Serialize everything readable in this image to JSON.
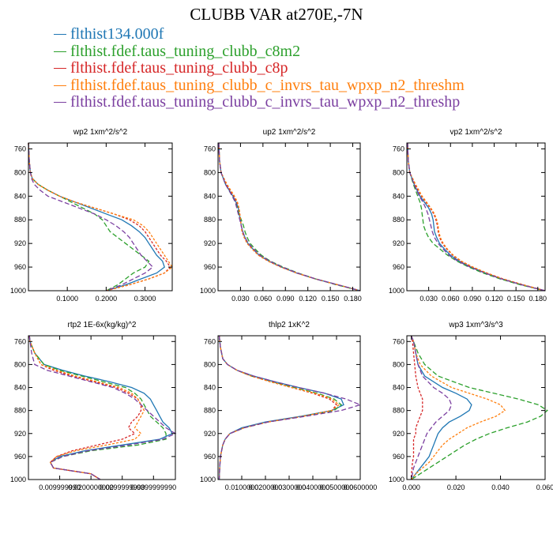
{
  "title": "CLUBB VAR at270E,-7N",
  "legend": [
    {
      "name": "flthist134.000f",
      "color": "#1f77b4"
    },
    {
      "name": "flthist.fdef.taus_tuning_clubb_c8m2",
      "color": "#2ca02c"
    },
    {
      "name": "flthist.fdef.taus_tuning_clubb_c8p",
      "color": "#d62728"
    },
    {
      "name": "flthist.fdef.taus_tuning_clubb_c_invrs_tau_wpxp_n2_threshm",
      "color": "#ff7f0e"
    },
    {
      "name": "flthist.fdef.taus_tuning_clubb_c_invrs_tau_wpxp_n2_threshp",
      "color": "#7b3fa0"
    }
  ],
  "chart_data": [
    {
      "type": "line",
      "title": "wp2 1xm^2/s^2",
      "xlim": [
        0,
        0.37
      ],
      "ylim": [
        1000,
        750
      ],
      "xticks": [
        "0.1000",
        "0.2000",
        "0.3000"
      ],
      "xtick_values": [
        0.1,
        0.2,
        0.3
      ],
      "yticks": [
        "760",
        "800",
        "840",
        "880",
        "920",
        "960",
        "1000"
      ],
      "y": [
        750,
        780,
        800,
        810,
        820,
        830,
        840,
        850,
        860,
        870,
        880,
        890,
        900,
        910,
        920,
        930,
        940,
        950,
        960,
        970,
        980,
        990,
        1000
      ],
      "series": [
        {
          "values": [
            0,
            0.002,
            0.005,
            0.01,
            0.025,
            0.05,
            0.08,
            0.12,
            0.16,
            0.2,
            0.24,
            0.265,
            0.285,
            0.3,
            0.31,
            0.32,
            0.33,
            0.345,
            0.35,
            0.33,
            0.29,
            0.25,
            0.2
          ]
        },
        {
          "values": [
            0,
            0.002,
            0.005,
            0.01,
            0.025,
            0.05,
            0.08,
            0.11,
            0.14,
            0.17,
            0.19,
            0.2,
            0.21,
            0.23,
            0.25,
            0.27,
            0.29,
            0.31,
            0.3,
            0.27,
            0.25,
            0.23,
            0.2
          ]
        },
        {
          "values": [
            0,
            0.002,
            0.005,
            0.01,
            0.025,
            0.05,
            0.08,
            0.12,
            0.17,
            0.22,
            0.26,
            0.285,
            0.3,
            0.31,
            0.32,
            0.33,
            0.34,
            0.355,
            0.365,
            0.35,
            0.31,
            0.26,
            0.2
          ]
        },
        {
          "values": [
            0,
            0.002,
            0.005,
            0.01,
            0.025,
            0.05,
            0.08,
            0.12,
            0.17,
            0.22,
            0.27,
            0.295,
            0.31,
            0.32,
            0.33,
            0.34,
            0.35,
            0.36,
            0.37,
            0.35,
            0.31,
            0.26,
            0.2
          ]
        },
        {
          "values": [
            0,
            0.002,
            0.005,
            0.008,
            0.015,
            0.03,
            0.05,
            0.09,
            0.13,
            0.17,
            0.2,
            0.225,
            0.245,
            0.26,
            0.27,
            0.28,
            0.29,
            0.305,
            0.32,
            0.3,
            0.27,
            0.24,
            0.2
          ]
        }
      ]
    },
    {
      "type": "line",
      "title": "up2 1xm^2/s^2",
      "xlim": [
        0,
        0.19
      ],
      "ylim": [
        1000,
        750
      ],
      "xticks": [
        "0.030",
        "0.060",
        "0.090",
        "0.120",
        "0.150",
        "0.180"
      ],
      "xtick_values": [
        0.03,
        0.06,
        0.09,
        0.12,
        0.15,
        0.18
      ],
      "yticks": [
        "760",
        "800",
        "840",
        "880",
        "920",
        "960",
        "1000"
      ],
      "y": [
        750,
        780,
        800,
        820,
        840,
        850,
        860,
        870,
        880,
        890,
        900,
        910,
        920,
        930,
        940,
        950,
        960,
        970,
        980,
        990,
        1000
      ],
      "series": [
        {
          "values": [
            0.001,
            0.002,
            0.004,
            0.01,
            0.02,
            0.024,
            0.027,
            0.028,
            0.03,
            0.031,
            0.033,
            0.036,
            0.04,
            0.047,
            0.055,
            0.068,
            0.085,
            0.105,
            0.13,
            0.16,
            0.19
          ]
        },
        {
          "values": [
            0.001,
            0.002,
            0.004,
            0.01,
            0.019,
            0.023,
            0.026,
            0.028,
            0.031,
            0.034,
            0.036,
            0.039,
            0.043,
            0.05,
            0.058,
            0.07,
            0.087,
            0.107,
            0.13,
            0.158,
            0.19
          ]
        },
        {
          "values": [
            0.001,
            0.002,
            0.004,
            0.011,
            0.021,
            0.025,
            0.028,
            0.029,
            0.03,
            0.031,
            0.032,
            0.035,
            0.039,
            0.046,
            0.054,
            0.067,
            0.084,
            0.105,
            0.13,
            0.16,
            0.19
          ]
        },
        {
          "values": [
            0.001,
            0.002,
            0.004,
            0.012,
            0.022,
            0.026,
            0.028,
            0.029,
            0.03,
            0.031,
            0.032,
            0.035,
            0.039,
            0.046,
            0.054,
            0.067,
            0.084,
            0.105,
            0.13,
            0.16,
            0.19
          ]
        },
        {
          "values": [
            0.001,
            0.002,
            0.004,
            0.01,
            0.019,
            0.023,
            0.025,
            0.027,
            0.029,
            0.031,
            0.033,
            0.036,
            0.041,
            0.048,
            0.056,
            0.069,
            0.086,
            0.106,
            0.13,
            0.16,
            0.19
          ]
        }
      ]
    },
    {
      "type": "line",
      "title": "vp2 1xm^2/s^2",
      "xlim": [
        0,
        0.19
      ],
      "ylim": [
        1000,
        750
      ],
      "xticks": [
        "0.030",
        "0.060",
        "0.090",
        "0.120",
        "0.150",
        "0.180"
      ],
      "xtick_values": [
        0.03,
        0.06,
        0.09,
        0.12,
        0.15,
        0.18
      ],
      "yticks": [
        "760",
        "800",
        "840",
        "880",
        "920",
        "960",
        "1000"
      ],
      "y": [
        750,
        780,
        800,
        820,
        840,
        850,
        860,
        870,
        880,
        890,
        900,
        910,
        920,
        930,
        940,
        950,
        960,
        970,
        980,
        990,
        1000
      ],
      "series": [
        {
          "values": [
            0.001,
            0.002,
            0.004,
            0.01,
            0.018,
            0.024,
            0.03,
            0.034,
            0.036,
            0.037,
            0.038,
            0.041,
            0.045,
            0.052,
            0.06,
            0.072,
            0.088,
            0.108,
            0.13,
            0.158,
            0.19
          ]
        },
        {
          "values": [
            0.001,
            0.002,
            0.004,
            0.009,
            0.015,
            0.018,
            0.02,
            0.021,
            0.022,
            0.023,
            0.026,
            0.03,
            0.036,
            0.046,
            0.056,
            0.069,
            0.085,
            0.105,
            0.128,
            0.156,
            0.19
          ]
        },
        {
          "values": [
            0.001,
            0.002,
            0.004,
            0.011,
            0.02,
            0.026,
            0.032,
            0.037,
            0.04,
            0.042,
            0.043,
            0.045,
            0.049,
            0.055,
            0.063,
            0.074,
            0.09,
            0.11,
            0.132,
            0.16,
            0.19
          ]
        },
        {
          "values": [
            0.001,
            0.002,
            0.004,
            0.012,
            0.021,
            0.027,
            0.033,
            0.038,
            0.041,
            0.043,
            0.044,
            0.046,
            0.05,
            0.056,
            0.064,
            0.075,
            0.091,
            0.11,
            0.132,
            0.16,
            0.19
          ]
        },
        {
          "values": [
            0.001,
            0.002,
            0.004,
            0.01,
            0.017,
            0.022,
            0.026,
            0.029,
            0.031,
            0.033,
            0.035,
            0.038,
            0.043,
            0.05,
            0.058,
            0.07,
            0.087,
            0.107,
            0.13,
            0.158,
            0.19
          ]
        }
      ]
    },
    {
      "type": "line",
      "title": "rtp2 1E-6x(kg/kg)^2",
      "xlim": [
        0,
        0.047
      ],
      "ylim": [
        1000,
        750
      ],
      "xticks": [
        "0.009999990",
        "0.0200000000",
        "0.0299999990",
        "0.0399999990"
      ],
      "xtick_values": [
        0.01,
        0.02,
        0.03,
        0.04
      ],
      "yticks": [
        "760",
        "800",
        "840",
        "880",
        "920",
        "960",
        "1000"
      ],
      "y": [
        750,
        760,
        780,
        800,
        810,
        820,
        830,
        840,
        850,
        860,
        870,
        880,
        890,
        900,
        910,
        920,
        930,
        940,
        950,
        960,
        970,
        980,
        990,
        1000
      ],
      "series": [
        {
          "values": [
            0.0003,
            0.0005,
            0.002,
            0.005,
            0.011,
            0.018,
            0.026,
            0.033,
            0.037,
            0.039,
            0.04,
            0.041,
            0.042,
            0.043,
            0.045,
            0.046,
            0.042,
            0.03,
            0.018,
            0.01,
            0.007,
            0.008,
            0.02,
            0.023
          ]
        },
        {
          "values": [
            0.0003,
            0.0005,
            0.002,
            0.005,
            0.01,
            0.017,
            0.024,
            0.031,
            0.034,
            0.036,
            0.037,
            0.038,
            0.039,
            0.041,
            0.043,
            0.044,
            0.044,
            0.035,
            0.02,
            0.011,
            0.007,
            0.008,
            0.02,
            0.023
          ]
        },
        {
          "values": [
            0.0003,
            0.0005,
            0.002,
            0.004,
            0.008,
            0.014,
            0.021,
            0.028,
            0.032,
            0.035,
            0.036,
            0.036,
            0.035,
            0.033,
            0.032,
            0.034,
            0.03,
            0.022,
            0.014,
            0.009,
            0.007,
            0.008,
            0.02,
            0.023
          ]
        },
        {
          "values": [
            0.0003,
            0.0005,
            0.002,
            0.004,
            0.009,
            0.015,
            0.022,
            0.029,
            0.033,
            0.035,
            0.036,
            0.037,
            0.036,
            0.035,
            0.034,
            0.036,
            0.034,
            0.025,
            0.015,
            0.009,
            0.007,
            0.008,
            0.02,
            0.023
          ]
        },
        {
          "values": [
            0.0003,
            0.0005,
            0.001,
            0.002,
            0.006,
            0.013,
            0.02,
            0.027,
            0.031,
            0.034,
            0.036,
            0.038,
            0.04,
            0.042,
            0.044,
            0.047,
            0.043,
            0.032,
            0.019,
            0.011,
            0.007,
            0.008,
            0.02,
            0.023
          ]
        }
      ]
    },
    {
      "type": "line",
      "title": "thlp2 1xK^2",
      "xlim": [
        0,
        0.06
      ],
      "ylim": [
        1000,
        750
      ],
      "xticks": [
        "0.0100000",
        "0.0200000",
        "0.0300000",
        "0.0400000",
        "0.0500000",
        "0.0600000"
      ],
      "xtick_values": [
        0.01,
        0.02,
        0.03,
        0.04,
        0.05,
        0.06
      ],
      "yticks": [
        "760",
        "800",
        "840",
        "880",
        "920",
        "960",
        "1000"
      ],
      "y": [
        750,
        770,
        790,
        800,
        810,
        820,
        830,
        840,
        850,
        860,
        870,
        880,
        890,
        900,
        910,
        920,
        930,
        940,
        950,
        960,
        980,
        1000
      ],
      "series": [
        {
          "values": [
            0.0005,
            0.001,
            0.002,
            0.004,
            0.008,
            0.015,
            0.024,
            0.034,
            0.045,
            0.052,
            0.053,
            0.048,
            0.035,
            0.02,
            0.01,
            0.005,
            0.003,
            0.002,
            0.0015,
            0.001,
            0.0007,
            0.0005
          ]
        },
        {
          "values": [
            0.0005,
            0.001,
            0.002,
            0.004,
            0.008,
            0.014,
            0.023,
            0.032,
            0.042,
            0.049,
            0.052,
            0.049,
            0.036,
            0.021,
            0.011,
            0.005,
            0.003,
            0.002,
            0.0015,
            0.001,
            0.0007,
            0.0005
          ]
        },
        {
          "values": [
            0.0005,
            0.001,
            0.002,
            0.004,
            0.008,
            0.014,
            0.022,
            0.031,
            0.04,
            0.047,
            0.05,
            0.048,
            0.036,
            0.021,
            0.011,
            0.005,
            0.003,
            0.002,
            0.0015,
            0.001,
            0.0007,
            0.0005
          ]
        },
        {
          "values": [
            0.0005,
            0.001,
            0.002,
            0.004,
            0.008,
            0.014,
            0.022,
            0.031,
            0.041,
            0.048,
            0.051,
            0.048,
            0.036,
            0.021,
            0.011,
            0.005,
            0.003,
            0.002,
            0.0015,
            0.001,
            0.0007,
            0.0005
          ]
        },
        {
          "values": [
            0.0005,
            0.001,
            0.002,
            0.004,
            0.008,
            0.015,
            0.024,
            0.034,
            0.045,
            0.054,
            0.06,
            0.052,
            0.037,
            0.021,
            0.011,
            0.005,
            0.003,
            0.002,
            0.0015,
            0.001,
            0.0007,
            0.0005
          ]
        }
      ]
    },
    {
      "type": "line",
      "title": "wp3 1xm^3/s^3",
      "xlim": [
        -0.002,
        0.06
      ],
      "ylim": [
        1000,
        750
      ],
      "xticks": [
        "0.000",
        "0.020",
        "0.040",
        "0.060"
      ],
      "xtick_values": [
        0,
        0.02,
        0.04,
        0.06
      ],
      "yticks": [
        "760",
        "800",
        "840",
        "880",
        "920",
        "960",
        "1000"
      ],
      "y": [
        750,
        760,
        780,
        800,
        820,
        840,
        850,
        860,
        870,
        880,
        890,
        900,
        910,
        920,
        930,
        940,
        950,
        960,
        970,
        980,
        990,
        1000
      ],
      "series": [
        {
          "values": [
            0,
            0.001,
            0.002,
            0.003,
            0.006,
            0.014,
            0.02,
            0.025,
            0.027,
            0.026,
            0.022,
            0.017,
            0.014,
            0.012,
            0.011,
            0.01,
            0.009,
            0.008,
            0.006,
            0.004,
            0.002,
            0.0
          ]
        },
        {
          "values": [
            0,
            0.001,
            0.003,
            0.006,
            0.012,
            0.026,
            0.037,
            0.048,
            0.057,
            0.061,
            0.058,
            0.052,
            0.043,
            0.035,
            0.029,
            0.024,
            0.02,
            0.016,
            0.012,
            0.008,
            0.004,
            0.0
          ]
        },
        {
          "values": [
            0,
            0.0005,
            0.001,
            0.0015,
            0.002,
            0.003,
            0.004,
            0.005,
            0.005,
            0.005,
            0.004,
            0.003,
            0.002,
            0.002,
            0.001,
            0.001,
            0.001,
            0.001,
            0.0005,
            0.0003,
            0.0001,
            0.0
          ]
        },
        {
          "values": [
            0,
            0.001,
            0.002,
            0.004,
            0.009,
            0.018,
            0.026,
            0.034,
            0.04,
            0.042,
            0.038,
            0.031,
            0.025,
            0.021,
            0.017,
            0.014,
            0.012,
            0.01,
            0.008,
            0.005,
            0.002,
            0.0
          ]
        },
        {
          "values": [
            0,
            0.001,
            0.002,
            0.003,
            0.005,
            0.01,
            0.014,
            0.017,
            0.018,
            0.017,
            0.014,
            0.011,
            0.009,
            0.007,
            0.006,
            0.005,
            0.004,
            0.003,
            0.002,
            0.001,
            0.0005,
            0.0
          ]
        }
      ]
    }
  ]
}
